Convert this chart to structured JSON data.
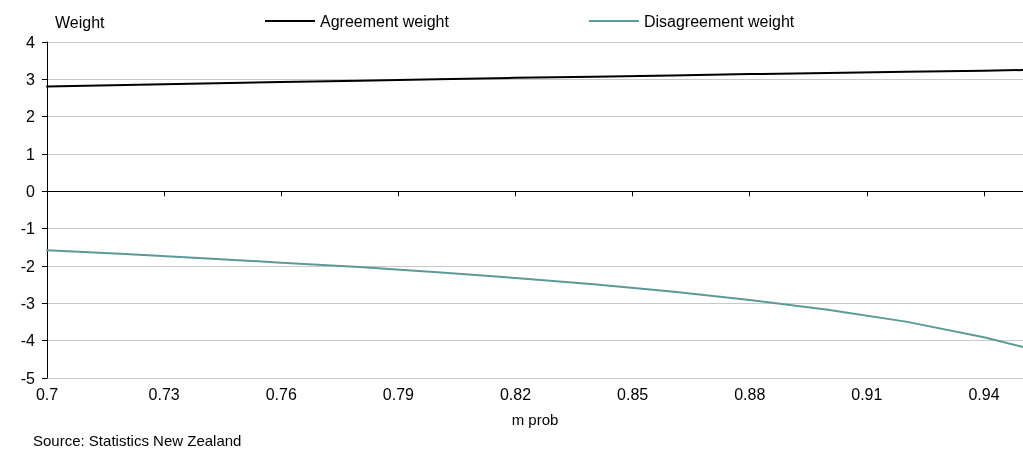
{
  "chart_data": {
    "type": "line",
    "xlabel": "m prob",
    "ylabel": "Weight",
    "annotations": [
      "Source: Statistics New Zealand"
    ],
    "x": [
      0.7,
      0.72,
      0.74,
      0.76,
      0.78,
      0.8,
      0.82,
      0.84,
      0.86,
      0.88,
      0.9,
      0.92,
      0.94,
      0.95
    ],
    "series": [
      {
        "name": "Agreement weight",
        "color": "#000000",
        "values": [
          2.81,
          2.85,
          2.89,
          2.93,
          2.96,
          3.0,
          3.04,
          3.07,
          3.1,
          3.14,
          3.17,
          3.2,
          3.23,
          3.25
        ]
      },
      {
        "name": "Disagreement weight",
        "color": "#5b9a98",
        "values": [
          -1.58,
          -1.68,
          -1.79,
          -1.91,
          -2.03,
          -2.17,
          -2.32,
          -2.49,
          -2.68,
          -2.91,
          -3.17,
          -3.49,
          -3.91,
          -4.17
        ]
      }
    ],
    "xlim": [
      0.7,
      0.95
    ],
    "xticks": [
      0.7,
      0.73,
      0.76,
      0.79,
      0.82,
      0.85,
      0.88,
      0.91,
      0.94
    ],
    "ylim": [
      -5,
      4
    ],
    "yticks": [
      -5,
      -4,
      -3,
      -2,
      -1,
      0,
      1,
      2,
      3,
      4
    ],
    "grid": "y",
    "legend": "top",
    "marker": "none",
    "line_style": "solid"
  }
}
